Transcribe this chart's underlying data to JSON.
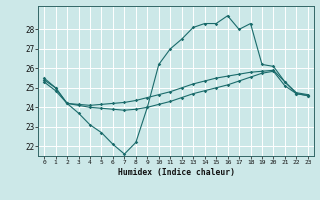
{
  "xlabel": "Humidex (Indice chaleur)",
  "bg_color": "#cce8e8",
  "line_color": "#1a6b6b",
  "grid_color": "#ffffff",
  "xlim": [
    -0.5,
    23.5
  ],
  "ylim": [
    21.5,
    29.2
  ],
  "yticks": [
    22,
    23,
    24,
    25,
    26,
    27,
    28
  ],
  "xticks": [
    0,
    1,
    2,
    3,
    4,
    5,
    6,
    7,
    8,
    9,
    10,
    11,
    12,
    13,
    14,
    15,
    16,
    17,
    18,
    19,
    20,
    21,
    22,
    23
  ],
  "series1_x": [
    0,
    1,
    2,
    3,
    4,
    5,
    6,
    7,
    8,
    9,
    10,
    11,
    12,
    13,
    14,
    15,
    16,
    17,
    18,
    19,
    20,
    21,
    22,
    23
  ],
  "series1_y": [
    25.5,
    25.0,
    24.2,
    23.7,
    23.1,
    22.7,
    22.1,
    21.6,
    22.2,
    24.0,
    26.2,
    27.0,
    27.5,
    28.1,
    28.3,
    28.3,
    28.7,
    28.0,
    28.3,
    26.2,
    26.1,
    25.3,
    24.7,
    24.6
  ],
  "series2_x": [
    0,
    1,
    2,
    3,
    4,
    5,
    6,
    7,
    8,
    9,
    10,
    11,
    12,
    13,
    14,
    15,
    16,
    17,
    18,
    19,
    20,
    21,
    22,
    23
  ],
  "series2_y": [
    25.4,
    25.0,
    24.2,
    24.15,
    24.1,
    24.15,
    24.2,
    24.25,
    24.35,
    24.5,
    24.65,
    24.8,
    25.0,
    25.2,
    25.35,
    25.5,
    25.6,
    25.7,
    25.8,
    25.85,
    25.9,
    25.3,
    24.75,
    24.65
  ],
  "series3_x": [
    0,
    1,
    2,
    3,
    4,
    5,
    6,
    7,
    8,
    9,
    10,
    11,
    12,
    13,
    14,
    15,
    16,
    17,
    18,
    19,
    20,
    21,
    22,
    23
  ],
  "series3_y": [
    25.3,
    24.85,
    24.2,
    24.1,
    24.0,
    23.95,
    23.9,
    23.85,
    23.9,
    24.0,
    24.15,
    24.3,
    24.5,
    24.7,
    24.85,
    25.0,
    25.15,
    25.35,
    25.55,
    25.75,
    25.85,
    25.1,
    24.7,
    24.6
  ]
}
